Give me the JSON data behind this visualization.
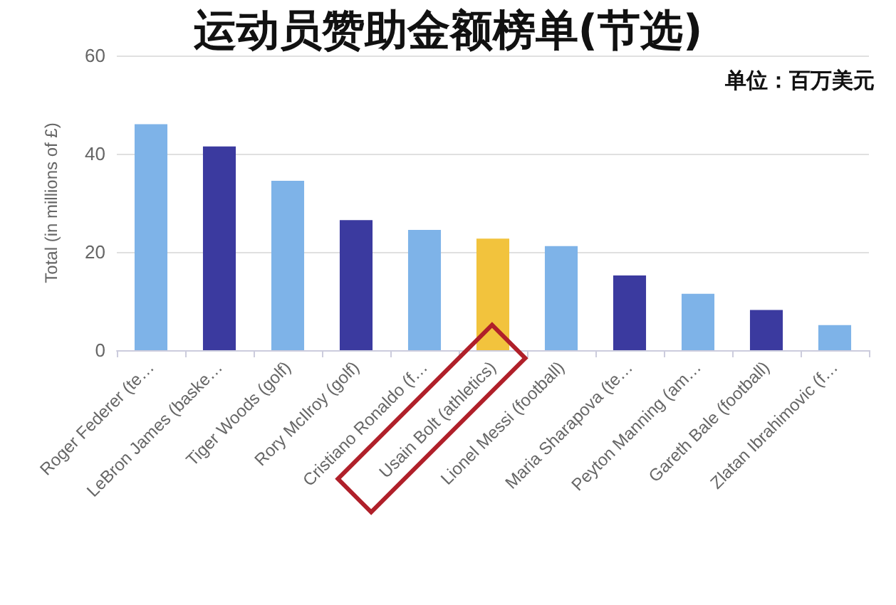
{
  "chart_data": {
    "type": "bar",
    "title": "运动员赞助金额榜单(节选)",
    "subtitle": "单位：百万美元",
    "ylabel": "Total (in millions of £)",
    "categories": [
      "Roger Federer (te…",
      "LeBron James (baske…",
      "Tiger Woods (golf)",
      "Rory McIlroy (golf)",
      "Cristiano Ronaldo (f…",
      "Usain Bolt (athletics)",
      "Lionel Messi (football)",
      "Maria Sharapova (te…",
      "Peyton Manning (am…",
      "Gareth Bale (football)",
      "Zlatan Ibrahimovic (f…"
    ],
    "values": [
      46,
      41.5,
      34.5,
      26.5,
      24.5,
      22.7,
      21.2,
      15.2,
      11.5,
      8.2,
      5.1
    ],
    "colors": [
      "#7eb3e8",
      "#3b3a9f",
      "#7eb3e8",
      "#3b3a9f",
      "#7eb3e8",
      "#f2c33d",
      "#7eb3e8",
      "#3b3a9f",
      "#7eb3e8",
      "#3b3a9f",
      "#7eb3e8"
    ],
    "ylim": [
      0,
      60
    ],
    "yticks": [
      0,
      20,
      40,
      60
    ],
    "grid": "y"
  }
}
